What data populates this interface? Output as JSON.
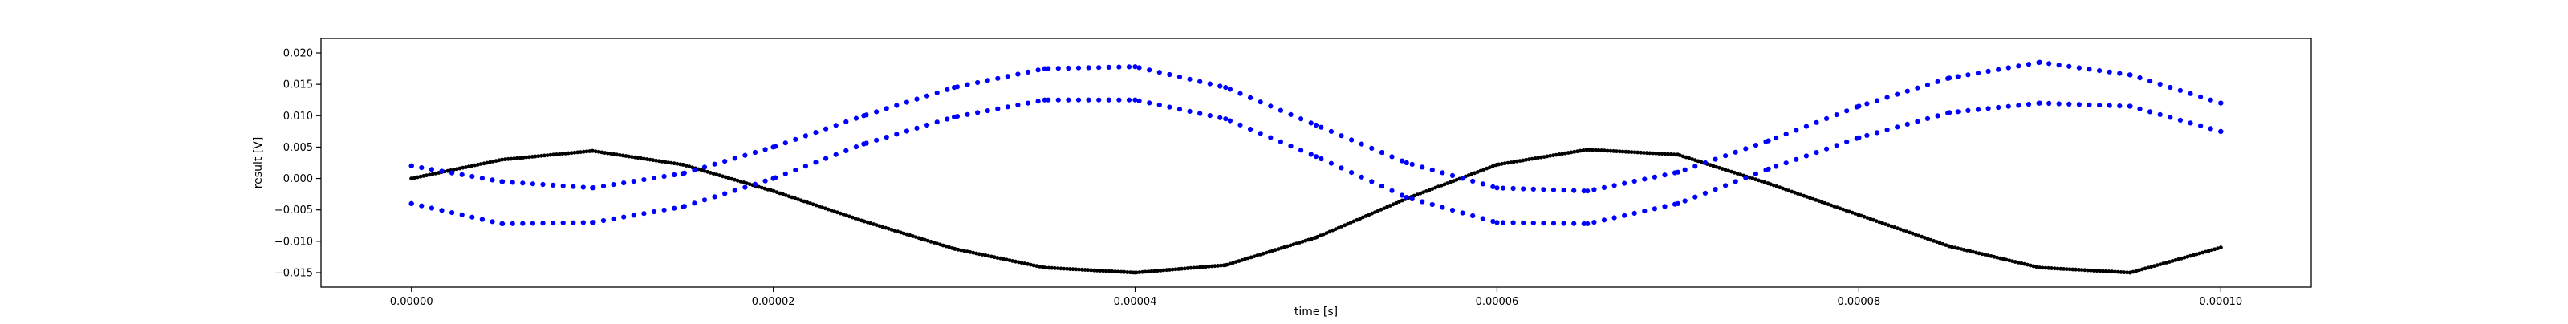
{
  "chart_data": {
    "type": "scatter",
    "title": "",
    "xlabel": "time [s]",
    "ylabel": "result [V]",
    "xlim": [
      -5e-06,
      0.000105
    ],
    "ylim": [
      -0.0173,
      0.0223
    ],
    "x_ticks": [
      {
        "value": 0.0,
        "label": "0.00000"
      },
      {
        "value": 2e-05,
        "label": "0.00002"
      },
      {
        "value": 4e-05,
        "label": "0.00004"
      },
      {
        "value": 6e-05,
        "label": "0.00006"
      },
      {
        "value": 8e-05,
        "label": "0.00008"
      },
      {
        "value": 0.0001,
        "label": "0.00010"
      }
    ],
    "y_ticks": [
      {
        "value": -0.015,
        "label": "−0.015"
      },
      {
        "value": -0.01,
        "label": "−0.010"
      },
      {
        "value": -0.005,
        "label": "−0.005"
      },
      {
        "value": 0.0,
        "label": "0.000"
      },
      {
        "value": 0.005,
        "label": "0.005"
      },
      {
        "value": 0.01,
        "label": "0.010"
      },
      {
        "value": 0.015,
        "label": "0.015"
      },
      {
        "value": 0.02,
        "label": "0.020"
      }
    ],
    "grid": false,
    "legend": "none",
    "series": [
      {
        "marker": "small-dot",
        "color": "#000000",
        "x": [
          0.0,
          5e-06,
          1e-05,
          1.5e-05,
          2e-05,
          2.5e-05,
          3e-05,
          3.5e-05,
          4e-05,
          4.5e-05,
          5e-05,
          5.5e-05,
          6e-05,
          6.5e-05,
          7e-05,
          7.5e-05,
          8e-05,
          8.5e-05,
          9e-05,
          9.5e-05,
          0.0001
        ],
        "y": [
          0.0,
          0.003,
          0.0044,
          0.0022,
          -0.002,
          -0.0068,
          -0.0112,
          -0.0142,
          -0.015,
          -0.0138,
          -0.0094,
          -0.0032,
          0.0022,
          0.0046,
          0.0038,
          -0.0008,
          -0.0058,
          -0.0108,
          -0.0142,
          -0.015,
          -0.011
        ]
      },
      {
        "marker": "dot",
        "color": "#0000ff",
        "note_upper_branch": "",
        "x": [
          0.0,
          5e-06,
          1e-05,
          1.5e-05,
          2e-05,
          2.5e-05,
          3e-05,
          3.5e-05,
          4e-05,
          4.5e-05,
          5e-05,
          5.5e-05,
          6e-05,
          6.5e-05,
          7e-05,
          7.5e-05,
          8e-05,
          8.5e-05,
          9e-05,
          9.5e-05,
          0.0001
        ],
        "y": [
          0.002,
          -0.0005,
          -0.0015,
          0.0008,
          0.005,
          0.01,
          0.0145,
          0.0175,
          0.0178,
          0.0145,
          0.0085,
          0.0025,
          -0.0015,
          -0.002,
          0.001,
          0.006,
          0.0115,
          0.016,
          0.0185,
          0.0165,
          0.012
        ]
      },
      {
        "marker": "dot",
        "color": "#0000ff",
        "x": [
          0.0,
          5e-06,
          1e-05,
          1.5e-05,
          2e-05,
          2.5e-05,
          3e-05,
          3.5e-05,
          4e-05,
          4.5e-05,
          5e-05,
          5.5e-05,
          6e-05,
          6.5e-05,
          7e-05,
          7.5e-05,
          8e-05,
          8.5e-05,
          9e-05,
          9.5e-05,
          0.0001
        ],
        "y": [
          -0.004,
          -0.0072,
          -0.007,
          -0.0045,
          0.0,
          0.0055,
          0.0098,
          0.0125,
          0.0125,
          0.0095,
          0.0035,
          -0.003,
          -0.007,
          -0.0072,
          -0.004,
          0.0015,
          0.0065,
          0.0105,
          0.012,
          0.0115,
          0.0075
        ]
      }
    ]
  }
}
